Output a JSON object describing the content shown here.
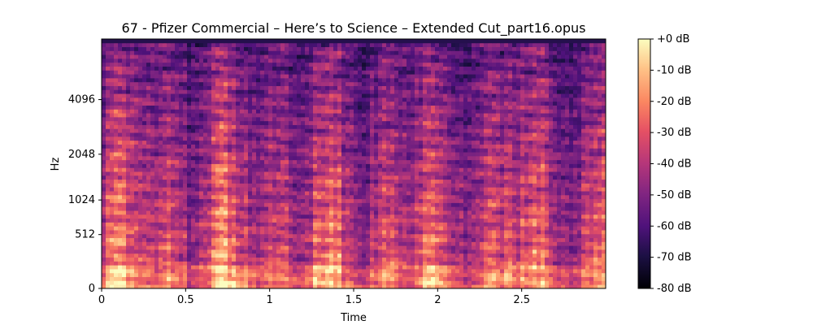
{
  "chart_data": {
    "type": "heatmap",
    "title": "67 - Pfizer Commercial – Here’s to Science – Extended Cut_part16.opus",
    "xlabel": "Time",
    "ylabel": "Hz",
    "x_ticks": [
      "0",
      "0.5",
      "1",
      "1.5",
      "2",
      "2.5"
    ],
    "x_tick_values": [
      0,
      0.5,
      1,
      1.5,
      2,
      2.5
    ],
    "xlim": [
      0,
      3.0
    ],
    "y_scale": "mel",
    "y_ticks": [
      "0",
      "512",
      "1024",
      "2048",
      "4096"
    ],
    "y_tick_values": [
      0,
      512,
      1024,
      2048,
      4096
    ],
    "colormap": "magma",
    "colorbar": {
      "ticks": [
        "+0 dB",
        "-10 dB",
        "-20 dB",
        "-30 dB",
        "-40 dB",
        "-50 dB",
        "-60 dB",
        "-70 dB",
        "-80 dB"
      ],
      "tick_values": [
        0,
        -10,
        -20,
        -30,
        -40,
        -50,
        -60,
        -70,
        -80
      ],
      "range": [
        -80,
        0
      ]
    },
    "grid": false,
    "legend": "none"
  }
}
